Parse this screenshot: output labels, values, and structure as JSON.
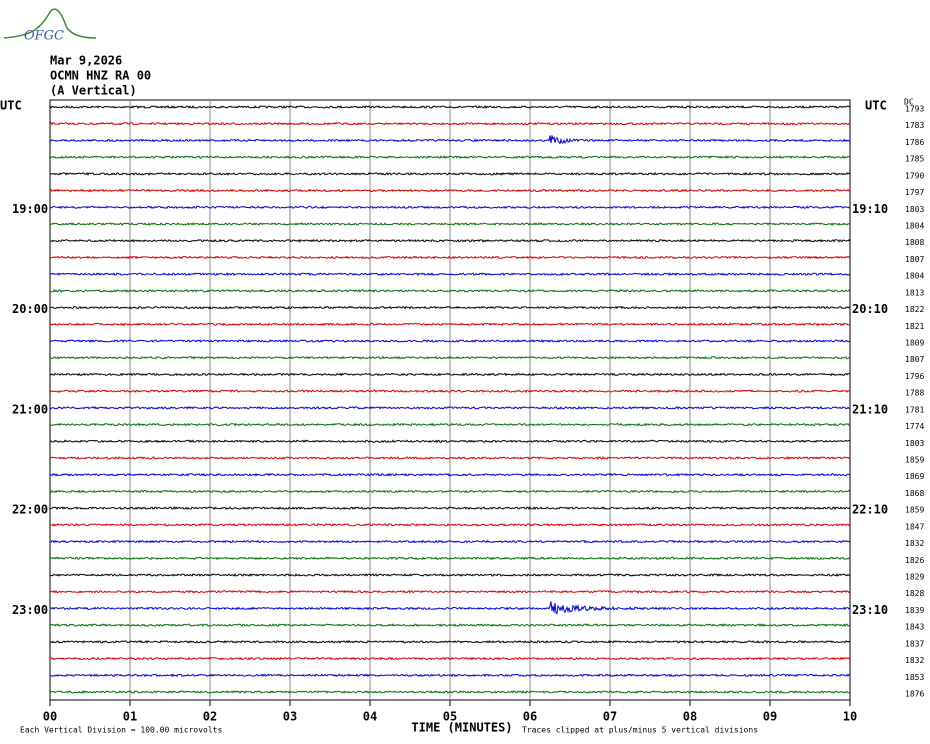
{
  "logo": "OFGC",
  "header": {
    "date": "Mar 9,2026",
    "station": "OCMN HNZ RA 00",
    "component": "(A Vertical)"
  },
  "left_labels": {
    "utc": "UTC",
    "hours": [
      "19:00",
      "20:00",
      "21:00",
      "22:00",
      "23:00"
    ]
  },
  "right_labels": {
    "utc": "UTC",
    "times": [
      "19:10",
      "20:10",
      "21:10",
      "22:10",
      "23:10"
    ]
  },
  "dc_header": "DC",
  "dc_values": [
    1793,
    1783,
    1786,
    1785,
    1790,
    1797,
    1803,
    1804,
    1808,
    1807,
    1804,
    1813,
    1822,
    1821,
    1809,
    1807,
    1796,
    1788,
    1781,
    1774,
    1803,
    1859,
    1869,
    1868,
    1859,
    1847,
    1832,
    1826,
    1829,
    1828,
    1839,
    1843,
    1837,
    1832,
    1853,
    1876
  ],
  "x_ticks": [
    "00",
    "01",
    "02",
    "03",
    "04",
    "05",
    "06",
    "07",
    "08",
    "09",
    "10"
  ],
  "x_label": "TIME (MINUTES)",
  "footer": {
    "scale": "Each Vertical Division =  100.00 microvolts",
    "clip": "Traces clipped at plus/minus 5 vertical divisions"
  }
}
